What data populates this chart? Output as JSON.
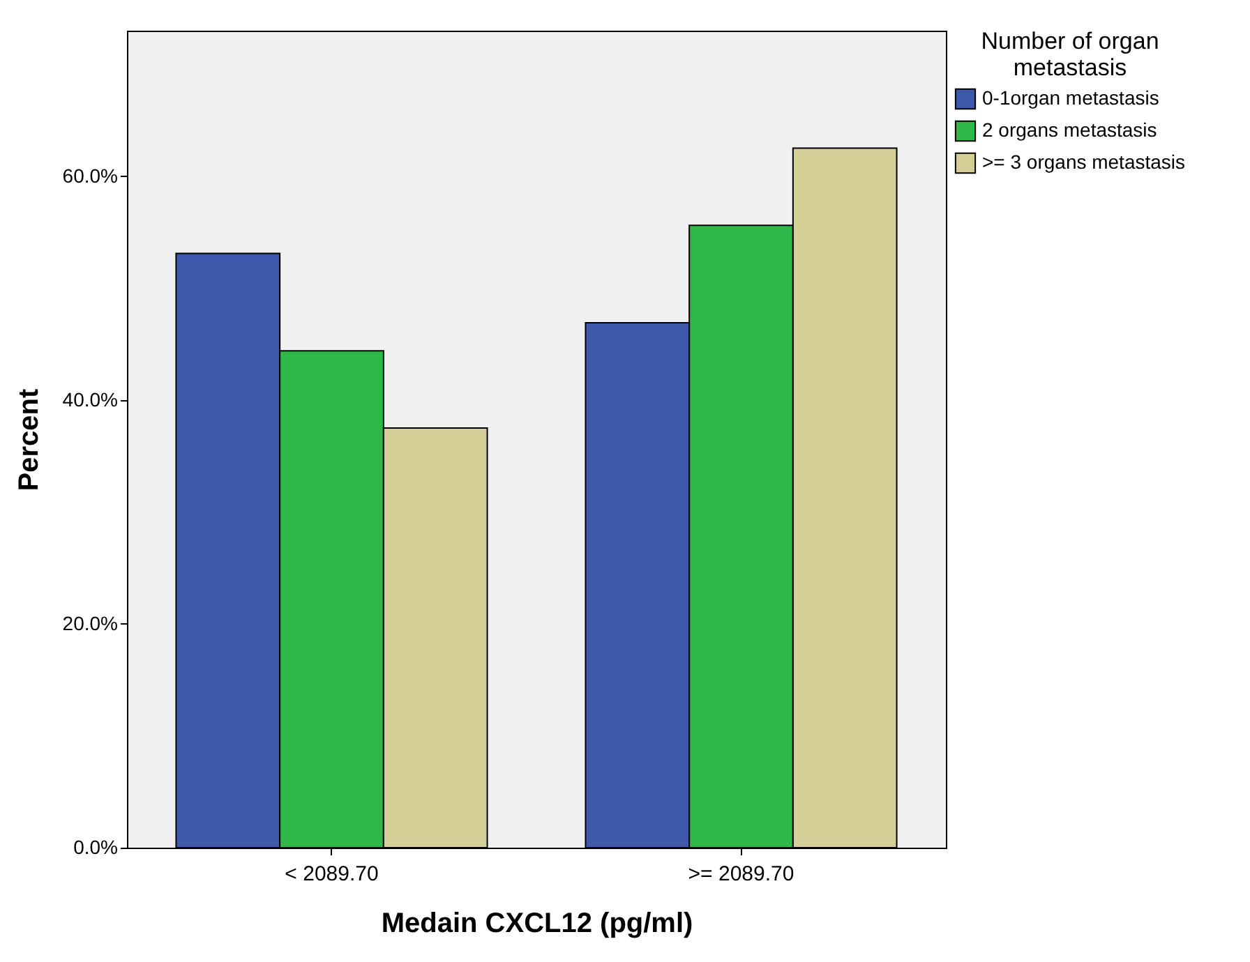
{
  "chart_data": {
    "type": "bar",
    "categories": [
      "< 2089.70",
      ">= 2089.70"
    ],
    "xlabel": "Medain CXCL12 (pg/ml)",
    "ylabel": "Percent",
    "legend_title": "Number of organ metastasis",
    "series": [
      {
        "name": "0-1organ metastasis",
        "color": "#3e58ac",
        "values": [
          53.1,
          46.9
        ]
      },
      {
        "name": "2 organs metastasis",
        "color": "#2eb84a",
        "values": [
          44.4,
          55.6
        ]
      },
      {
        "name": ">= 3 organs metastasis",
        "color": "#d4cf97",
        "values": [
          37.5,
          62.5
        ]
      }
    ],
    "ylim": [
      0,
      73
    ],
    "yticks": [
      {
        "value": 0,
        "label": "0.0%"
      },
      {
        "value": 20,
        "label": "20.0%"
      },
      {
        "value": 40,
        "label": "40.0%"
      },
      {
        "value": 60,
        "label": "60.0%"
      }
    ],
    "grid": false,
    "legend": "top right"
  }
}
